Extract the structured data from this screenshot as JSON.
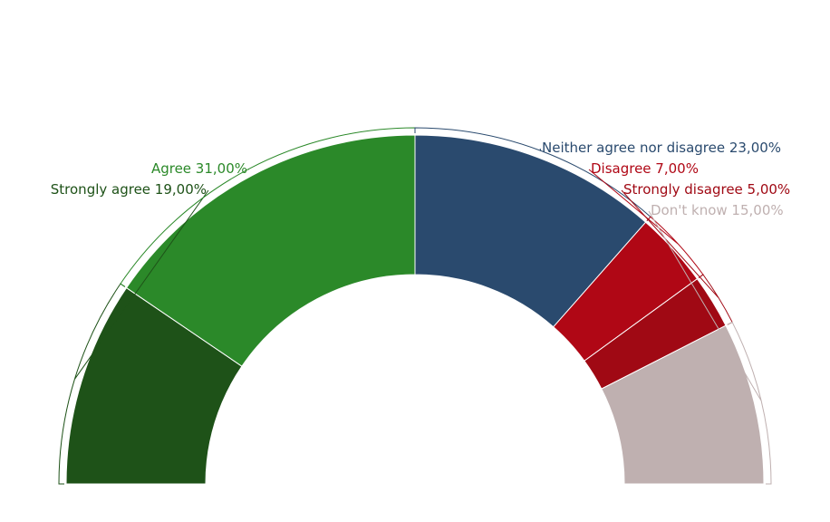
{
  "chart_data": {
    "type": "pie",
    "subtype": "semicircle-donut",
    "title": "",
    "legend": "none",
    "slices": [
      {
        "name": "Strongly agree",
        "value": 19,
        "label": "Strongly agree 19,00%",
        "color": "#1e5218"
      },
      {
        "name": "Agree",
        "value": 31,
        "label": "Agree 31,00%",
        "color": "#2b8929"
      },
      {
        "name": "Neither agree nor disagree",
        "value": 23,
        "label": "Neither agree nor disagree 23,00%",
        "color": "#2a4a6e"
      },
      {
        "name": "Disagree",
        "value": 7,
        "label": "Disagree 7,00%",
        "color": "#b00715"
      },
      {
        "name": "Strongly disagree",
        "value": 5,
        "label": "Strongly disagree 5,00%",
        "color": "#a00914"
      },
      {
        "name": "Don't know",
        "value": 15,
        "label": "Don't know 15,00%",
        "color": "#bfb0b0"
      }
    ]
  }
}
